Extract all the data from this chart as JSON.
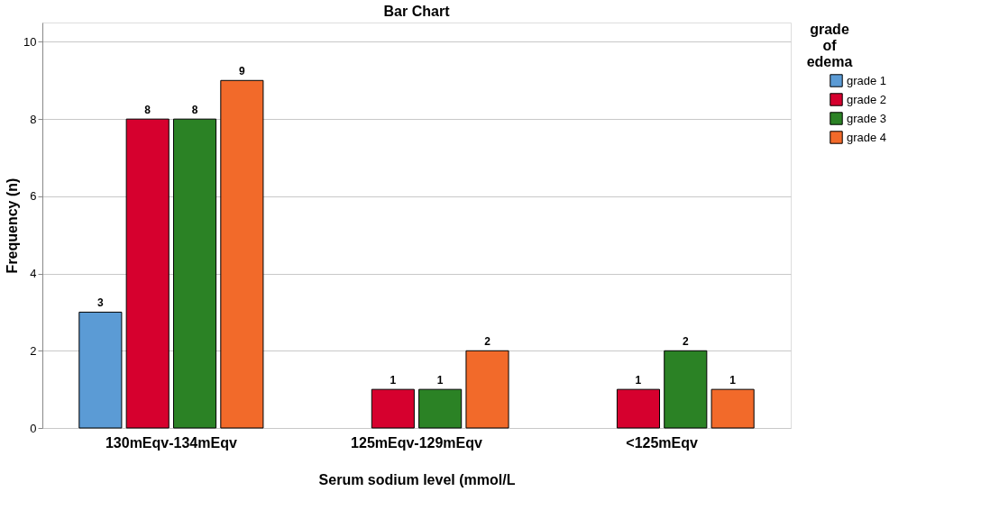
{
  "chart_data": {
    "type": "bar",
    "title": "Bar Chart",
    "xlabel": "Serum sodium level (mmol/L",
    "ylabel": "Frequency (n)",
    "legend_title": "grade of edema",
    "categories": [
      "130mEqv-134mEqv",
      "125mEqv-129mEqv",
      "<125mEqv"
    ],
    "series": [
      {
        "name": "grade 1",
        "color": "#5b9bd5",
        "values": [
          3,
          null,
          null
        ]
      },
      {
        "name": "grade 2",
        "color": "#d6002e",
        "values": [
          8,
          1,
          1
        ]
      },
      {
        "name": "grade 3",
        "color": "#2b8225",
        "values": [
          8,
          1,
          2
        ]
      },
      {
        "name": "grade 4",
        "color": "#f26a2a",
        "values": [
          9,
          2,
          1
        ]
      }
    ],
    "ylim": [
      0,
      10.5
    ],
    "yticks": [
      0,
      2,
      4,
      6,
      8,
      10
    ],
    "grid": "y",
    "legend": "top right",
    "data_labels": true
  }
}
